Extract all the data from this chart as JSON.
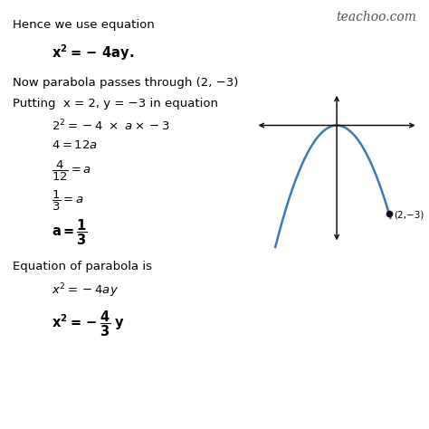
{
  "background_color": "#ffffff",
  "teachoo_text": "teachoo.com",
  "teachoo_color": "#555555",
  "parabola_color": "#3a7ab8",
  "parabola_linewidth": 1.8,
  "axis_color": "#111111",
  "point_color": "#111111"
}
